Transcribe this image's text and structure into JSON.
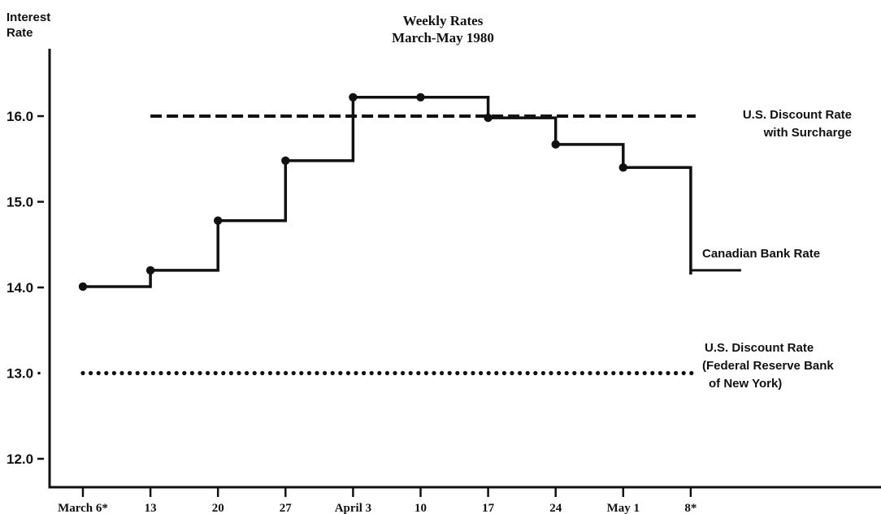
{
  "chart_data": {
    "type": "line",
    "title": "Weekly Rates",
    "subtitle": "March-May 1980",
    "ylabel_line1": "Interest",
    "ylabel_line2": "Rate",
    "xlabel": "",
    "ylim": [
      11.6,
      16.8
    ],
    "yticks": [
      {
        "value": 12.0,
        "label": "12.0"
      },
      {
        "value": 13.0,
        "label": "13.0"
      },
      {
        "value": 14.0,
        "label": "14.0"
      },
      {
        "value": 15.0,
        "label": "15.0"
      },
      {
        "value": 16.0,
        "label": "16.0"
      }
    ],
    "xticks": [
      {
        "week": 0,
        "label": "March 6*"
      },
      {
        "week": 1,
        "label": "13"
      },
      {
        "week": 2,
        "label": "20"
      },
      {
        "week": 3,
        "label": "27"
      },
      {
        "week": 4,
        "label": "April 3"
      },
      {
        "week": 5,
        "label": "10"
      },
      {
        "week": 6,
        "label": "17"
      },
      {
        "week": 7,
        "label": "24"
      },
      {
        "week": 8,
        "label": "May 1"
      },
      {
        "week": 9,
        "label": "8*"
      }
    ],
    "series": [
      {
        "name": "Canadian Bank Rate",
        "label_lines": [
          "Canadian Bank Rate"
        ],
        "style": "step-solid",
        "x": [
          "March 6",
          "13",
          "20",
          "27",
          "April 3",
          "10",
          "17",
          "24",
          "May 1",
          "8"
        ],
        "values": [
          14.01,
          14.2,
          14.78,
          15.48,
          16.22,
          16.22,
          15.98,
          15.67,
          15.4,
          14.15
        ],
        "extension_value": 14.2
      },
      {
        "name": "U.S. Discount Rate with Surcharge",
        "label_lines": [
          "U.S. Discount Rate",
          "with Surcharge"
        ],
        "style": "dashed",
        "x_range": [
          "13",
          "8"
        ],
        "value": 16.0
      },
      {
        "name": "U.S. Discount Rate (Federal Reserve Bank of New York)",
        "label_lines": [
          "U.S. Discount Rate",
          "(Federal Reserve Bank",
          "of New York)"
        ],
        "style": "dotted",
        "x_range": [
          "March 6",
          "8"
        ],
        "value": 13.0
      }
    ],
    "grid": false,
    "legend": "none (series labelled at right)"
  },
  "colors": {
    "ink": "#111111",
    "background": "#ffffff"
  }
}
